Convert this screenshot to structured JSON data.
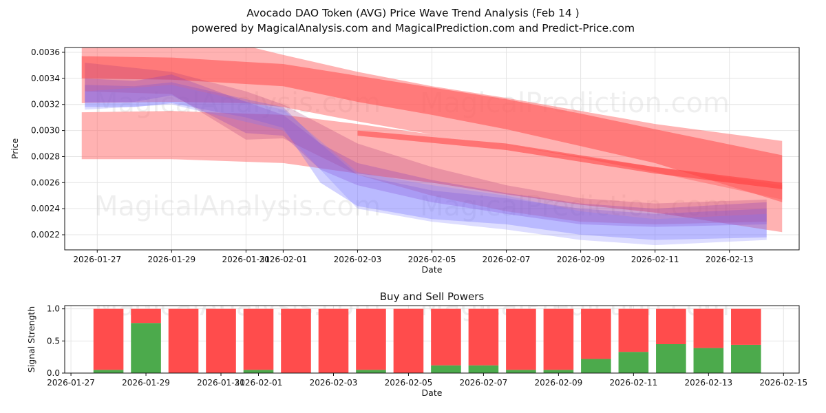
{
  "title": "Avocado DAO Token (AVG) Price Wave Trend Analysis (Feb 14 )",
  "subtitle": "powered by MagicalAnalysis.com and MagicalPrediction.com and Predict-Price.com",
  "watermarks": [
    "MagicalAnalysis.com",
    "MagicalPrediction.com"
  ],
  "chart_data": [
    {
      "type": "area",
      "title": "",
      "xlabel": "Date",
      "ylabel": "Price",
      "xlim": [
        "2026-01-26T03:00",
        "2026-02-14T21:00"
      ],
      "ylim": [
        0.002084,
        0.003637
      ],
      "grid": true,
      "x_ticks": [
        "2026-01-27",
        "2026-01-29",
        "2026-01-31",
        "2026-02-01",
        "2026-02-03",
        "2026-02-05",
        "2026-02-07",
        "2026-02-09",
        "2026-02-11",
        "2026-02-13"
      ],
      "y_ticks": [
        "0.0022",
        "0.0024",
        "0.0026",
        "0.0028",
        "0.0030",
        "0.0032",
        "0.0034",
        "0.0036"
      ],
      "bands": [
        {
          "color": "#ff6666",
          "opacity": 0.5,
          "x": [
            "2026-01-26T14:00",
            "2026-01-29T00:00",
            "2026-01-31T00:00",
            "2026-02-01T00:00",
            "2026-02-03T00:00",
            "2026-02-05T00:00",
            "2026-02-07T00:00",
            "2026-02-09T00:00",
            "2026-02-11T00:00",
            "2026-02-14T10:00"
          ],
          "upper": [
            0.0037,
            0.0037,
            0.00365,
            0.00358,
            0.00345,
            0.00334,
            0.00325,
            0.00315,
            0.00305,
            0.00292
          ],
          "lower": [
            0.00321,
            0.00322,
            0.00321,
            0.00318,
            0.00307,
            0.00297,
            0.00289,
            0.00279,
            0.00268,
            0.00247
          ]
        },
        {
          "color": "#ff5555",
          "opacity": 0.6,
          "x": [
            "2026-01-26T14:00",
            "2026-01-29T00:00",
            "2026-02-01T00:00",
            "2026-02-03T00:00",
            "2026-02-05T00:00",
            "2026-02-07T00:00",
            "2026-02-09T00:00",
            "2026-02-11T00:00",
            "2026-02-14T10:00"
          ],
          "upper": [
            0.00357,
            0.00356,
            0.00351,
            0.00342,
            0.00333,
            0.00324,
            0.00313,
            0.00301,
            0.00281
          ],
          "lower": [
            0.0034,
            0.00339,
            0.00334,
            0.00322,
            0.00312,
            0.00301,
            0.00288,
            0.00275,
            0.00245
          ]
        },
        {
          "color": "#ff6666",
          "opacity": 0.5,
          "x": [
            "2026-01-26T14:00",
            "2026-01-29T00:00",
            "2026-02-01T00:00",
            "2026-02-03T00:00",
            "2026-02-05T00:00",
            "2026-02-07T00:00",
            "2026-02-09T00:00",
            "2026-02-11T00:00",
            "2026-02-14T10:00"
          ],
          "upper": [
            0.00314,
            0.00315,
            0.00312,
            0.00305,
            0.00297,
            0.00289,
            0.0028,
            0.00272,
            0.00258
          ],
          "lower": [
            0.00278,
            0.00278,
            0.00275,
            0.00267,
            0.0026,
            0.00251,
            0.00243,
            0.00237,
            0.00222
          ]
        },
        {
          "color": "#ff3333",
          "opacity": 0.5,
          "x": [
            "2026-02-03T00:00",
            "2026-02-07T00:00",
            "2026-02-11T00:00",
            "2026-02-14T10:00"
          ],
          "upper": [
            0.003,
            0.0029,
            0.00272,
            0.0026
          ],
          "lower": [
            0.00296,
            0.00285,
            0.00267,
            0.00255
          ]
        },
        {
          "color": "#6666ff",
          "opacity": 0.3,
          "x": [
            "2026-01-26T16:00",
            "2026-01-28T00:00",
            "2026-01-29T00:00",
            "2026-01-31T00:00",
            "2026-02-01T00:00",
            "2026-02-02T00:00",
            "2026-02-03T00:00",
            "2026-02-05T00:00",
            "2026-02-07T00:00",
            "2026-02-09T00:00",
            "2026-02-11T00:00",
            "2026-02-14T00:00"
          ],
          "upper": [
            0.00335,
            0.00334,
            0.00337,
            0.00324,
            0.00318,
            0.0029,
            0.00266,
            0.00254,
            0.00248,
            0.0024,
            0.00236,
            0.0024
          ],
          "lower": [
            0.00318,
            0.00318,
            0.00321,
            0.0031,
            0.00302,
            0.0026,
            0.00242,
            0.00232,
            0.00228,
            0.0022,
            0.00216,
            0.00218
          ]
        },
        {
          "color": "#8844cc",
          "opacity": 0.3,
          "x": [
            "2026-01-26T16:00",
            "2026-01-28T00:00",
            "2026-01-29T00:00",
            "2026-01-31T00:00",
            "2026-02-01T00:00",
            "2026-02-02T00:00",
            "2026-02-03T00:00",
            "2026-02-05T00:00",
            "2026-02-07T00:00",
            "2026-02-09T00:00",
            "2026-02-11T00:00",
            "2026-02-14T00:00"
          ],
          "upper": [
            0.0034,
            0.00338,
            0.00343,
            0.00322,
            0.00312,
            0.0029,
            0.00275,
            0.00262,
            0.00252,
            0.00244,
            0.0024,
            0.00245
          ],
          "lower": [
            0.00322,
            0.00322,
            0.00327,
            0.00298,
            0.00296,
            0.0027,
            0.00258,
            0.00245,
            0.00236,
            0.00228,
            0.00226,
            0.00228
          ]
        },
        {
          "color": "#aa3377",
          "opacity": 0.25,
          "x": [
            "2026-01-26T16:00",
            "2026-01-29T00:00",
            "2026-01-31T00:00",
            "2026-02-01T00:00",
            "2026-02-03T00:00",
            "2026-02-05T00:00",
            "2026-02-07T00:00",
            "2026-02-09T00:00",
            "2026-02-11T00:00",
            "2026-02-14T00:00"
          ],
          "upper": [
            0.00352,
            0.00345,
            0.0033,
            0.0032,
            0.0029,
            0.00272,
            0.00258,
            0.00248,
            0.00244,
            0.00247
          ],
          "lower": [
            0.0033,
            0.00328,
            0.00293,
            0.00294,
            0.00266,
            0.0025,
            0.00238,
            0.0023,
            0.00228,
            0.0023
          ]
        },
        {
          "color": "#7777ff",
          "opacity": 0.25,
          "x": [
            "2026-01-26T16:00",
            "2026-01-29T00:00",
            "2026-02-01T00:00",
            "2026-02-03T00:00",
            "2026-02-05T00:00",
            "2026-02-07T00:00",
            "2026-02-09T00:00",
            "2026-02-11T00:00",
            "2026-02-14T00:00"
          ],
          "upper": [
            0.0033,
            0.00335,
            0.00316,
            0.00268,
            0.00258,
            0.0025,
            0.00238,
            0.00232,
            0.00236
          ],
          "lower": [
            0.00316,
            0.0032,
            0.003,
            0.0024,
            0.0023,
            0.00224,
            0.00216,
            0.00212,
            0.00216
          ]
        }
      ]
    },
    {
      "type": "bar",
      "title": "Buy and Sell Powers",
      "xlabel": "Date",
      "ylabel": "Signal Strength",
      "ylim": [
        0,
        1.05
      ],
      "xlim": [
        "2026-01-26T20:00",
        "2026-02-15T10:00"
      ],
      "x_ticks": [
        "2026-01-27",
        "2026-01-29",
        "2026-01-31",
        "2026-02-01",
        "2026-02-03",
        "2026-02-05",
        "2026-02-07",
        "2026-02-09",
        "2026-02-11",
        "2026-02-13",
        "2026-02-15"
      ],
      "y_ticks": [
        "0.0",
        "0.5",
        "1.0"
      ],
      "categories": [
        "2026-01-28",
        "2026-01-29",
        "2026-01-30",
        "2026-01-31",
        "2026-02-01",
        "2026-02-02",
        "2026-02-03",
        "2026-02-04",
        "2026-02-05",
        "2026-02-06",
        "2026-02-07",
        "2026-02-08",
        "2026-02-09",
        "2026-02-10",
        "2026-02-11",
        "2026-02-12",
        "2026-02-13",
        "2026-02-14"
      ],
      "series": [
        {
          "name": "Buy",
          "color": "#4caa4c",
          "values": [
            0.05,
            0.78,
            0,
            0,
            0.05,
            0,
            0,
            0.05,
            0,
            0.12,
            0.12,
            0.05,
            0.05,
            0.22,
            0.33,
            0.45,
            0.39,
            0.44
          ]
        },
        {
          "name": "Sell",
          "color": "#ff4c4c",
          "values": [
            0.95,
            0.22,
            1,
            1,
            0.95,
            1,
            1,
            0.95,
            1,
            0.88,
            0.88,
            0.95,
            0.95,
            0.78,
            0.67,
            0.55,
            0.61,
            0.56
          ]
        }
      ]
    }
  ]
}
